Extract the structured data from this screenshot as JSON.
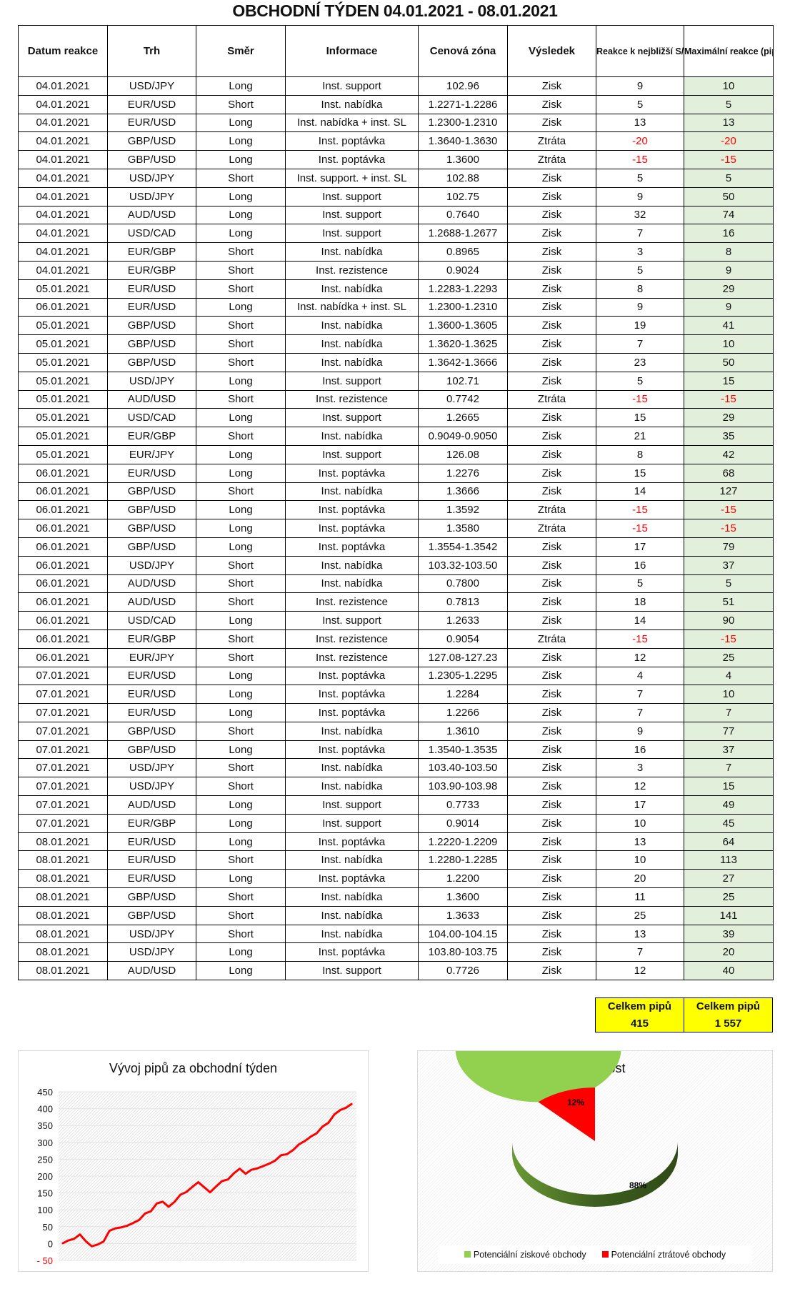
{
  "title": "OBCHODNÍ TÝDEN 04.01.2021 - 08.01.2021",
  "table": {
    "headers": [
      "Datum reakce",
      "Trh",
      "Směr",
      "Informace",
      "Cenová zóna",
      "Výsledek",
      "Reakce k nejbližší S/R zóně (pipy)",
      "Maximální reakce (pipy)"
    ],
    "rows": [
      [
        "04.01.2021",
        "USD/JPY",
        "Long",
        "Inst. support",
        "102.96",
        "Zisk",
        9,
        10
      ],
      [
        "04.01.2021",
        "EUR/USD",
        "Short",
        "Inst. nabídka",
        "1.2271-1.2286",
        "Zisk",
        5,
        5
      ],
      [
        "04.01.2021",
        "EUR/USD",
        "Long",
        "Inst. nabídka + inst. SL",
        "1.2300-1.2310",
        "Zisk",
        13,
        13
      ],
      [
        "04.01.2021",
        "GBP/USD",
        "Long",
        "Inst. poptávka",
        "1.3640-1.3630",
        "Ztráta",
        -20,
        -20
      ],
      [
        "04.01.2021",
        "GBP/USD",
        "Long",
        "Inst. poptávka",
        "1.3600",
        "Ztráta",
        -15,
        -15
      ],
      [
        "04.01.2021",
        "USD/JPY",
        "Short",
        "Inst. support. + inst. SL",
        "102.88",
        "Zisk",
        5,
        5
      ],
      [
        "04.01.2021",
        "USD/JPY",
        "Long",
        "Inst. support",
        "102.75",
        "Zisk",
        9,
        50
      ],
      [
        "04.01.2021",
        "AUD/USD",
        "Long",
        "Inst. support",
        "0.7640",
        "Zisk",
        32,
        74
      ],
      [
        "04.01.2021",
        "USD/CAD",
        "Long",
        "Inst. support",
        "1.2688-1.2677",
        "Zisk",
        7,
        16
      ],
      [
        "04.01.2021",
        "EUR/GBP",
        "Short",
        "Inst. nabídka",
        "0.8965",
        "Zisk",
        3,
        8
      ],
      [
        "04.01.2021",
        "EUR/GBP",
        "Short",
        "Inst. rezistence",
        "0.9024",
        "Zisk",
        5,
        9
      ],
      [
        "05.01.2021",
        "EUR/USD",
        "Short",
        "Inst. nabídka",
        "1.2283-1.2293",
        "Zisk",
        8,
        29
      ],
      [
        "06.01.2021",
        "EUR/USD",
        "Long",
        "Inst. nabídka + inst. SL",
        "1.2300-1.2310",
        "Zisk",
        9,
        9
      ],
      [
        "05.01.2021",
        "GBP/USD",
        "Short",
        "Inst. nabídka",
        "1.3600-1.3605",
        "Zisk",
        19,
        41
      ],
      [
        "05.01.2021",
        "GBP/USD",
        "Short",
        "Inst. nabídka",
        "1.3620-1.3625",
        "Zisk",
        7,
        10
      ],
      [
        "05.01.2021",
        "GBP/USD",
        "Short",
        "Inst. nabídka",
        "1.3642-1.3666",
        "Zisk",
        23,
        50
      ],
      [
        "05.01.2021",
        "USD/JPY",
        "Long",
        "Inst. support",
        "102.71",
        "Zisk",
        5,
        15
      ],
      [
        "05.01.2021",
        "AUD/USD",
        "Short",
        "Inst. rezistence",
        "0.7742",
        "Ztráta",
        -15,
        -15
      ],
      [
        "05.01.2021",
        "USD/CAD",
        "Long",
        "Inst. support",
        "1.2665",
        "Zisk",
        15,
        29
      ],
      [
        "05.01.2021",
        "EUR/GBP",
        "Short",
        "Inst. nabídka",
        "0.9049-0.9050",
        "Zisk",
        21,
        35
      ],
      [
        "05.01.2021",
        "EUR/JPY",
        "Long",
        "Inst. support",
        "126.08",
        "Zisk",
        8,
        42
      ],
      [
        "06.01.2021",
        "EUR/USD",
        "Long",
        "Inst. poptávka",
        "1.2276",
        "Zisk",
        15,
        68
      ],
      [
        "06.01.2021",
        "GBP/USD",
        "Short",
        "Inst. nabídka",
        "1.3666",
        "Zisk",
        14,
        127
      ],
      [
        "06.01.2021",
        "GBP/USD",
        "Long",
        "Inst. poptávka",
        "1.3592",
        "Ztráta",
        -15,
        -15
      ],
      [
        "06.01.2021",
        "GBP/USD",
        "Long",
        "Inst. poptávka",
        "1.3580",
        "Ztráta",
        -15,
        -15
      ],
      [
        "06.01.2021",
        "GBP/USD",
        "Long",
        "Inst. poptávka",
        "1.3554-1.3542",
        "Zisk",
        17,
        79
      ],
      [
        "06.01.2021",
        "USD/JPY",
        "Short",
        "Inst. nabídka",
        "103.32-103.50",
        "Zisk",
        16,
        37
      ],
      [
        "06.01.2021",
        "AUD/USD",
        "Short",
        "Inst. nabídka",
        "0.7800",
        "Zisk",
        5,
        5
      ],
      [
        "06.01.2021",
        "AUD/USD",
        "Short",
        "Inst. rezistence",
        "0.7813",
        "Zisk",
        18,
        51
      ],
      [
        "06.01.2021",
        "USD/CAD",
        "Long",
        "Inst. support",
        "1.2633",
        "Zisk",
        14,
        90
      ],
      [
        "06.01.2021",
        "EUR/GBP",
        "Short",
        "Inst. rezistence",
        "0.9054",
        "Ztráta",
        -15,
        -15
      ],
      [
        "06.01.2021",
        "EUR/JPY",
        "Short",
        "Inst. rezistence",
        "127.08-127.23",
        "Zisk",
        12,
        25
      ],
      [
        "07.01.2021",
        "EUR/USD",
        "Long",
        "Inst. poptávka",
        "1.2305-1.2295",
        "Zisk",
        4,
        4
      ],
      [
        "07.01.2021",
        "EUR/USD",
        "Long",
        "Inst. poptávka",
        "1.2284",
        "Zisk",
        7,
        10
      ],
      [
        "07.01.2021",
        "EUR/USD",
        "Long",
        "Inst. poptávka",
        "1.2266",
        "Zisk",
        7,
        7
      ],
      [
        "07.01.2021",
        "GBP/USD",
        "Short",
        "Inst. nabídka",
        "1.3610",
        "Zisk",
        9,
        77
      ],
      [
        "07.01.2021",
        "GBP/USD",
        "Long",
        "Inst. poptávka",
        "1.3540-1.3535",
        "Zisk",
        16,
        37
      ],
      [
        "07.01.2021",
        "USD/JPY",
        "Short",
        "Inst. nabídka",
        "103.40-103.50",
        "Zisk",
        3,
        7
      ],
      [
        "07.01.2021",
        "USD/JPY",
        "Short",
        "Inst. nabídka",
        "103.90-103.98",
        "Zisk",
        12,
        15
      ],
      [
        "07.01.2021",
        "AUD/USD",
        "Long",
        "Inst. support",
        "0.7733",
        "Zisk",
        17,
        49
      ],
      [
        "07.01.2021",
        "EUR/GBP",
        "Long",
        "Inst. support",
        "0.9014",
        "Zisk",
        10,
        45
      ],
      [
        "08.01.2021",
        "EUR/USD",
        "Long",
        "Inst. poptávka",
        "1.2220-1.2209",
        "Zisk",
        13,
        64
      ],
      [
        "08.01.2021",
        "EUR/USD",
        "Short",
        "Inst. nabídka",
        "1.2280-1.2285",
        "Zisk",
        10,
        113
      ],
      [
        "08.01.2021",
        "EUR/USD",
        "Long",
        "Inst. poptávka",
        "1.2200",
        "Zisk",
        20,
        27
      ],
      [
        "08.01.2021",
        "GBP/USD",
        "Short",
        "Inst. nabídka",
        "1.3600",
        "Zisk",
        11,
        25
      ],
      [
        "08.01.2021",
        "GBP/USD",
        "Short",
        "Inst. nabídka",
        "1.3633",
        "Zisk",
        25,
        141
      ],
      [
        "08.01.2021",
        "USD/JPY",
        "Short",
        "Inst. nabídka",
        "104.00-104.15",
        "Zisk",
        13,
        39
      ],
      [
        "08.01.2021",
        "USD/JPY",
        "Long",
        "Inst. poptávka",
        "103.80-103.75",
        "Zisk",
        7,
        20
      ],
      [
        "08.01.2021",
        "AUD/USD",
        "Long",
        "Inst. support",
        "0.7726",
        "Zisk",
        12,
        40
      ]
    ]
  },
  "totals": [
    {
      "label": "Celkem pipů",
      "value": "415"
    },
    {
      "label": "Celkem pipů",
      "value": "1 557"
    }
  ],
  "colors": {
    "max_cell": "#e2efda",
    "negative": "#ff0000",
    "totals_bg": "#ffff00",
    "line": "#ff0000",
    "pie_win": "#92d050",
    "pie_loss": "#ff0000"
  },
  "chart_data": [
    {
      "type": "line",
      "title": "Vývoj pipů za obchodní týden",
      "ylim": [
        -50,
        450
      ],
      "yticks": [
        "450",
        "400",
        "350",
        "300",
        "250",
        "200",
        "150",
        "100",
        "50",
        "0",
        "- 50"
      ],
      "grid": true,
      "series": [
        {
          "values": [
            0,
            9,
            14,
            27,
            7,
            -8,
            -3,
            6,
            38,
            45,
            48,
            53,
            61,
            70,
            89,
            96,
            119,
            124,
            109,
            124,
            145,
            153,
            168,
            182,
            167,
            152,
            169,
            185,
            190,
            208,
            222,
            207,
            219,
            223,
            230,
            237,
            246,
            262,
            265,
            277,
            294,
            304,
            317,
            327,
            347,
            358,
            383,
            396,
            403,
            415
          ]
        }
      ]
    },
    {
      "type": "pie",
      "title": "Úspěšnost",
      "legend": "bottom",
      "slices": [
        {
          "name": "Potenciální ziskové obchody",
          "value": 88,
          "label": "88%"
        },
        {
          "name": "Potenciální ztrátové obchody",
          "value": 12,
          "label": "12%"
        }
      ]
    }
  ]
}
